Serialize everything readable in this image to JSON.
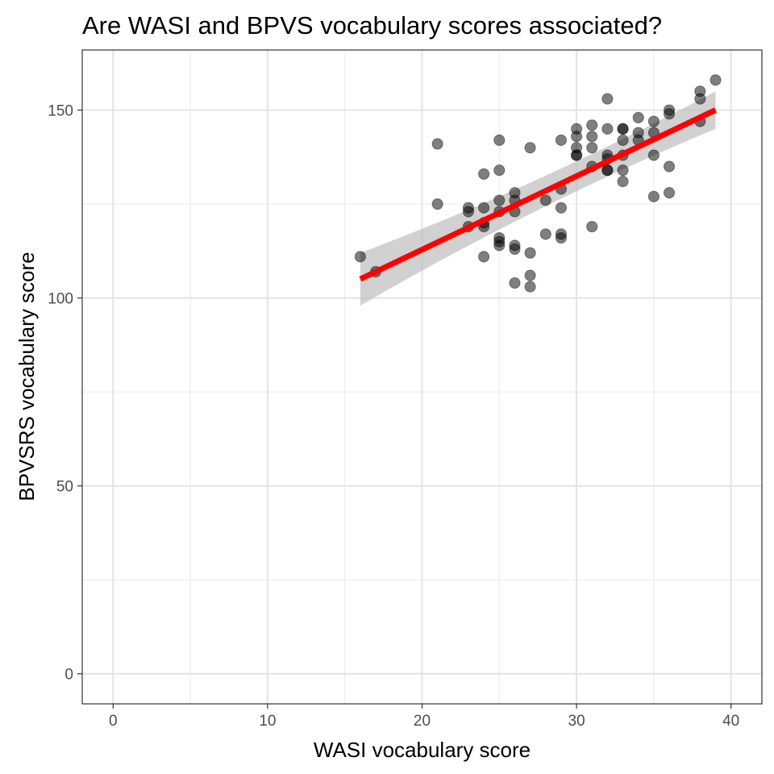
{
  "chart_data": {
    "type": "scatter",
    "title": "Are WASI and BPVS vocabulary scores associated?",
    "xlabel": "WASI vocabulary score",
    "ylabel": "BPVSRS vocabulary score",
    "xlim": [
      -2,
      42
    ],
    "ylim": [
      -8,
      166
    ],
    "x_ticks": [
      0,
      10,
      20,
      30,
      40
    ],
    "y_ticks": [
      0,
      50,
      100,
      150
    ],
    "grid": true,
    "legend": "none",
    "points": {
      "x": [
        16,
        17,
        21,
        21,
        23,
        23,
        23,
        24,
        24,
        24,
        24,
        24,
        25,
        25,
        25,
        25,
        25,
        25,
        25,
        26,
        26,
        26,
        26,
        26,
        26,
        27,
        27,
        27,
        27,
        28,
        28,
        29,
        29,
        29,
        29,
        29,
        30,
        30,
        30,
        30,
        30,
        31,
        31,
        31,
        31,
        31,
        32,
        32,
        32,
        32,
        32,
        32,
        33,
        33,
        33,
        33,
        33,
        33,
        34,
        34,
        34,
        35,
        35,
        35,
        35,
        36,
        36,
        36,
        36,
        38,
        38,
        38,
        39
      ],
      "y": [
        111,
        107,
        141,
        125,
        124,
        123,
        119,
        133,
        124,
        120,
        119,
        111,
        142,
        134,
        126,
        123,
        116,
        115,
        114,
        128,
        126,
        123,
        114,
        113,
        104,
        140,
        112,
        106,
        103,
        126,
        117,
        142,
        129,
        124,
        117,
        116,
        145,
        143,
        140,
        138,
        138,
        146,
        143,
        140,
        135,
        119,
        153,
        145,
        138,
        137,
        134,
        134,
        145,
        145,
        142,
        138,
        134,
        131,
        148,
        144,
        142,
        147,
        144,
        138,
        127,
        150,
        149,
        135,
        128,
        155,
        153,
        147,
        158
      ],
      "color": "#000000",
      "alpha": 0.5
    },
    "fit": {
      "method": "lm",
      "x_range": [
        16,
        39
      ],
      "intercept": 73.75,
      "slope": 1.956,
      "ci_lower": [
        98,
        145
      ],
      "ci_upper": [
        112,
        155
      ],
      "line_color": "#ff0000",
      "ribbon_color": "#bdbdbd"
    }
  }
}
